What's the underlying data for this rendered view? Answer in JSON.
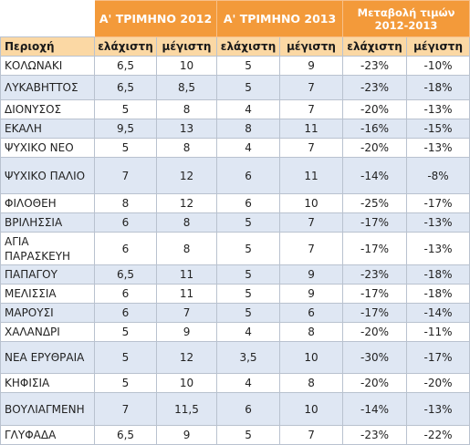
{
  "header": {
    "q2012": "Α' ΤΡΙΜΗΝΟ 2012",
    "q2013": "Α' ΤΡΙΜΗΝΟ 2013",
    "change_line1": "Μεταβολή τιμών",
    "change_line2": "2012-2013"
  },
  "subheader": {
    "region": "Περιοχή",
    "min": "ελάχιστη",
    "max": "μέγιστη"
  },
  "rows": [
    {
      "region": "ΚΟΛΩΝΑΚΙ",
      "min12": "6,5",
      "max12": "10",
      "min13": "5",
      "max13": "9",
      "chmin": "-23%",
      "chmax": "-10%"
    },
    {
      "region": "ΛΥΚΑΒΗΤΤΟΣ",
      "min12": "6,5",
      "max12": "8,5",
      "min13": "5",
      "max13": "7",
      "chmin": "-23%",
      "chmax": "-18%"
    },
    {
      "region": "ΔΙΟΝΥΣΟΣ",
      "min12": "5",
      "max12": "8",
      "min13": "4",
      "max13": "7",
      "chmin": "-20%",
      "chmax": "-13%"
    },
    {
      "region": "ΕΚΑΛΗ",
      "min12": "9,5",
      "max12": "13",
      "min13": "8",
      "max13": "11",
      "chmin": "-16%",
      "chmax": "-15%"
    },
    {
      "region": "ΨΥΧΙΚΟ ΝΕΟ",
      "min12": "5",
      "max12": "8",
      "min13": "4",
      "max13": "7",
      "chmin": "-20%",
      "chmax": "-13%"
    },
    {
      "region": "ΨΥΧΙΚΟ ΠΑΛΙΟ",
      "min12": "7",
      "max12": "12",
      "min13": "6",
      "max13": "11",
      "chmin": "-14%",
      "chmax": "-8%"
    },
    {
      "region": "ΦΙΛΟΘΕΗ",
      "min12": "8",
      "max12": "12",
      "min13": "6",
      "max13": "10",
      "chmin": "-25%",
      "chmax": "-17%"
    },
    {
      "region": "ΒΡΙΛΗΣΣΙΑ",
      "min12": "6",
      "max12": "8",
      "min13": "5",
      "max13": "7",
      "chmin": "-17%",
      "chmax": "-13%"
    },
    {
      "region": "ΑΓΙΑ ΠΑΡΑΣΚΕΥΗ",
      "min12": "6",
      "max12": "8",
      "min13": "5",
      "max13": "7",
      "chmin": "-17%",
      "chmax": "-13%"
    },
    {
      "region": "ΠΑΠΑΓΟΥ",
      "min12": "6,5",
      "max12": "11",
      "min13": "5",
      "max13": "9",
      "chmin": "-23%",
      "chmax": "-18%"
    },
    {
      "region": "ΜΕΛΙΣΣΙΑ",
      "min12": "6",
      "max12": "11",
      "min13": "5",
      "max13": "9",
      "chmin": "-17%",
      "chmax": "-18%"
    },
    {
      "region": "ΜΑΡΟΥΣΙ",
      "min12": "6",
      "max12": "7",
      "min13": "5",
      "max13": "6",
      "chmin": "-17%",
      "chmax": "-14%"
    },
    {
      "region": "ΧΑΛΑΝΔΡΙ",
      "min12": "5",
      "max12": "9",
      "min13": "4",
      "max13": "8",
      "chmin": "-20%",
      "chmax": "-11%"
    },
    {
      "region": "ΝΕΑ ΕΡΥΘΡΑΙΑ",
      "min12": "5",
      "max12": "12",
      "min13": "3,5",
      "max13": "10",
      "chmin": "-30%",
      "chmax": "-17%"
    },
    {
      "region": "ΚΗΦΙΣΙΑ",
      "min12": "5",
      "max12": "10",
      "min13": "4",
      "max13": "8",
      "chmin": "-20%",
      "chmax": "-20%"
    },
    {
      "region": "ΒΟΥΛΙΑΓΜΕΝΗ",
      "min12": "7",
      "max12": "11,5",
      "min13": "6",
      "max13": "10",
      "chmin": "-14%",
      "chmax": "-13%"
    },
    {
      "region": "ΓΛΥΦΑΔΑ",
      "min12": "6,5",
      "max12": "9",
      "min13": "5",
      "max13": "7",
      "chmin": "-23%",
      "chmax": "-22%"
    }
  ],
  "colors": {
    "header_orange": "#f39a3a",
    "subheader_peach": "#fbd8a4",
    "row_blue": "#dfe7f3"
  }
}
